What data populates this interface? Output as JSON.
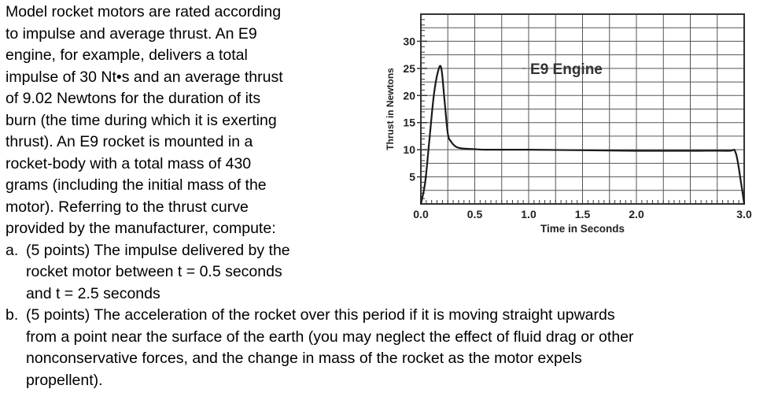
{
  "problem": {
    "intro_lines": [
      "Model rocket motors are rated according",
      "to impulse and average thrust.  An E9",
      "engine, for example, delivers a total",
      "impulse of 30 Nt•s and an average thrust",
      "of 9.02 Newtons for the duration of its",
      "burn (the time during which it is exerting",
      "thrust).  An E9 rocket is mounted in a",
      "rocket-body with a total mass of 430",
      "grams (including the initial mass of the",
      "motor).  Referring to the thrust curve",
      "provided by the manufacturer, compute:"
    ],
    "part_a": {
      "label": "a.",
      "lines": [
        "(5 points) The impulse delivered by the",
        "rocket motor between t = 0.5 seconds",
        "and t = 2.5 seconds"
      ]
    },
    "part_b": {
      "label": "b.",
      "lines": [
        "(5 points) The acceleration of the rocket over this period if it is moving straight upwards",
        "from a point near the surface of the earth (you may neglect the effect of fluid drag or other",
        "nonconservative forces, and the change in mass of the rocket as the motor expels",
        "propellent)."
      ]
    }
  },
  "chart_data": {
    "type": "line",
    "title": "",
    "xlabel": "Time in Seconds",
    "ylabel": "Thrust in Newtons",
    "xlim": [
      0.0,
      3.0
    ],
    "ylim": [
      0,
      35
    ],
    "x_ticks": [
      "0.0",
      "0.5",
      "1.0",
      "1.5",
      "2.0",
      "3.0"
    ],
    "x_tick_values": [
      0.0,
      0.5,
      1.0,
      1.5,
      2.0,
      3.0
    ],
    "y_ticks": [
      "5",
      "10",
      "15",
      "20",
      "25",
      "30"
    ],
    "y_tick_values": [
      5,
      10,
      15,
      20,
      25,
      30
    ],
    "grid": true,
    "series": [
      {
        "name": "E9 Engine",
        "x": [
          0.0,
          0.04,
          0.08,
          0.12,
          0.16,
          0.19,
          0.22,
          0.25,
          0.28,
          0.33,
          0.4,
          0.5,
          0.6,
          1.0,
          1.5,
          2.0,
          2.5,
          2.85,
          2.92,
          2.97,
          3.0
        ],
        "y": [
          0,
          4,
          12,
          20,
          24.5,
          25,
          19,
          13,
          11.5,
          10.5,
          10.2,
          10.1,
          10,
          10,
          9.9,
          9.8,
          9.8,
          9.8,
          9.5,
          4,
          0
        ]
      }
    ],
    "annotations": [
      {
        "text": "E9 Engine",
        "x": 1.35,
        "y": 25
      }
    ],
    "colors": {
      "line": "#1a1a1a",
      "grid": "#555555",
      "frame": "#333333"
    }
  }
}
